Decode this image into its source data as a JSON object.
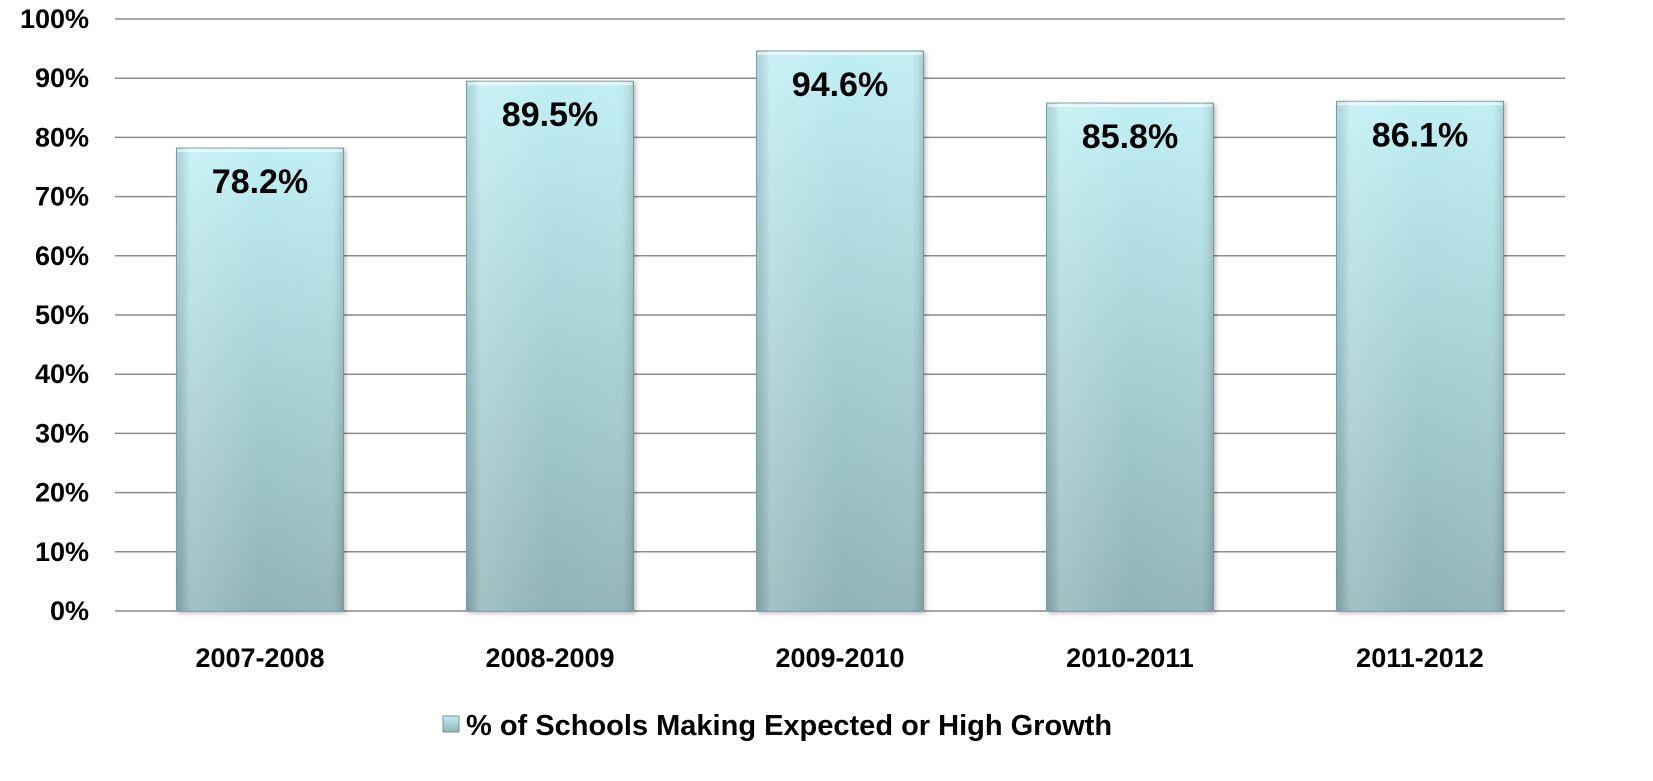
{
  "chart_data": {
    "type": "bar",
    "categories": [
      "2007-2008",
      "2008-2009",
      "2009-2010",
      "2010-2011",
      "2011-2012"
    ],
    "series": [
      {
        "name": "% of Schools Making Expected or High Growth",
        "values": [
          78.2,
          89.5,
          94.6,
          85.8,
          86.1
        ]
      }
    ],
    "data_labels": [
      "78.2%",
      "89.5%",
      "94.6%",
      "85.8%",
      "86.1%"
    ],
    "y_ticks": [
      0,
      10,
      20,
      30,
      40,
      50,
      60,
      70,
      80,
      90,
      100
    ],
    "y_tick_labels": [
      "0%",
      "10%",
      "20%",
      "30%",
      "40%",
      "50%",
      "60%",
      "70%",
      "80%",
      "90%",
      "100%"
    ],
    "ylim": [
      0,
      100
    ],
    "grid": true,
    "legend_position": "bottom",
    "title": "",
    "xlabel": "",
    "ylabel": "",
    "colors": {
      "bar_top": "#bfeff4",
      "bar_bottom": "#8fb3b6",
      "bar_edge": "#7fa6aa",
      "gridline": "#8c8c8c",
      "axis": "#8c8c8c"
    }
  }
}
